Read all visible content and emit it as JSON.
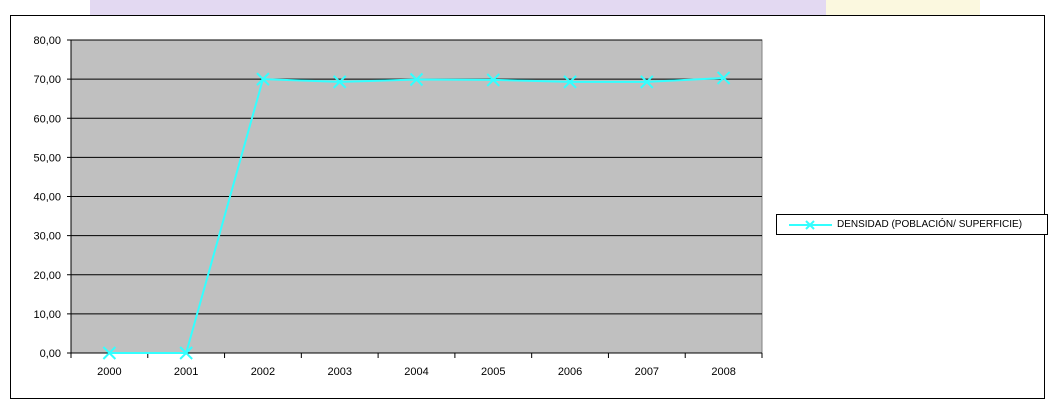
{
  "colors": {
    "plot_background": "#c0c0c0",
    "series_line": "#33ffff",
    "gridline": "#000000",
    "top_band_purple": "#e3d9f2",
    "top_band_yellow": "#fbf8df"
  },
  "chart_data": {
    "type": "line",
    "title": "",
    "xlabel": "",
    "ylabel": "",
    "categories": [
      "2000",
      "2001",
      "2002",
      "2003",
      "2004",
      "2005",
      "2006",
      "2007",
      "2008"
    ],
    "y_ticks": [
      "0,00",
      "10,00",
      "20,00",
      "30,00",
      "40,00",
      "50,00",
      "60,00",
      "70,00",
      "80,00"
    ],
    "ylim": [
      0,
      80
    ],
    "grid": true,
    "legend_position": "right",
    "series": [
      {
        "name": "DENSIDAD (POBLACIÓN/ SUPERFICIE)",
        "marker": "x",
        "values": [
          0,
          0,
          70.0,
          69.3,
          69.9,
          69.8,
          69.3,
          69.3,
          70.3
        ]
      }
    ]
  }
}
